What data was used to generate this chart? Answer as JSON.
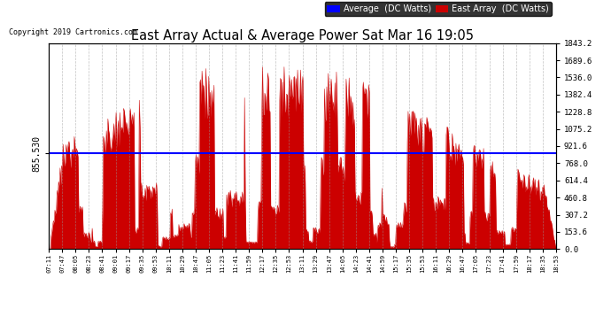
{
  "title": "East Array Actual & Average Power Sat Mar 16 19:05",
  "copyright": "Copyright 2019 Cartronics.com",
  "avg_value": 855.53,
  "avg_label": "855.530",
  "y_max": 1843.2,
  "y_min": 0.0,
  "y_ticks_right": [
    0.0,
    153.6,
    307.2,
    460.8,
    614.4,
    768.0,
    921.6,
    1075.2,
    1228.8,
    1382.4,
    1536.0,
    1689.6,
    1843.2
  ],
  "legend_avg_color": "#0000FF",
  "legend_east_color": "#CC0000",
  "fill_color": "#CC0000",
  "line_avg_color": "#0000FF",
  "background_color": "#FFFFFF",
  "grid_color": "#999999",
  "x_labels": [
    "07:11",
    "07:47",
    "08:05",
    "08:23",
    "08:41",
    "09:01",
    "09:17",
    "09:35",
    "09:53",
    "10:11",
    "10:29",
    "10:47",
    "11:05",
    "11:23",
    "11:41",
    "11:59",
    "12:17",
    "12:35",
    "12:53",
    "13:11",
    "13:29",
    "13:47",
    "14:05",
    "14:23",
    "14:41",
    "14:59",
    "15:17",
    "15:35",
    "15:53",
    "16:11",
    "16:29",
    "16:47",
    "17:05",
    "17:23",
    "17:41",
    "17:59",
    "18:17",
    "18:35",
    "18:53"
  ]
}
